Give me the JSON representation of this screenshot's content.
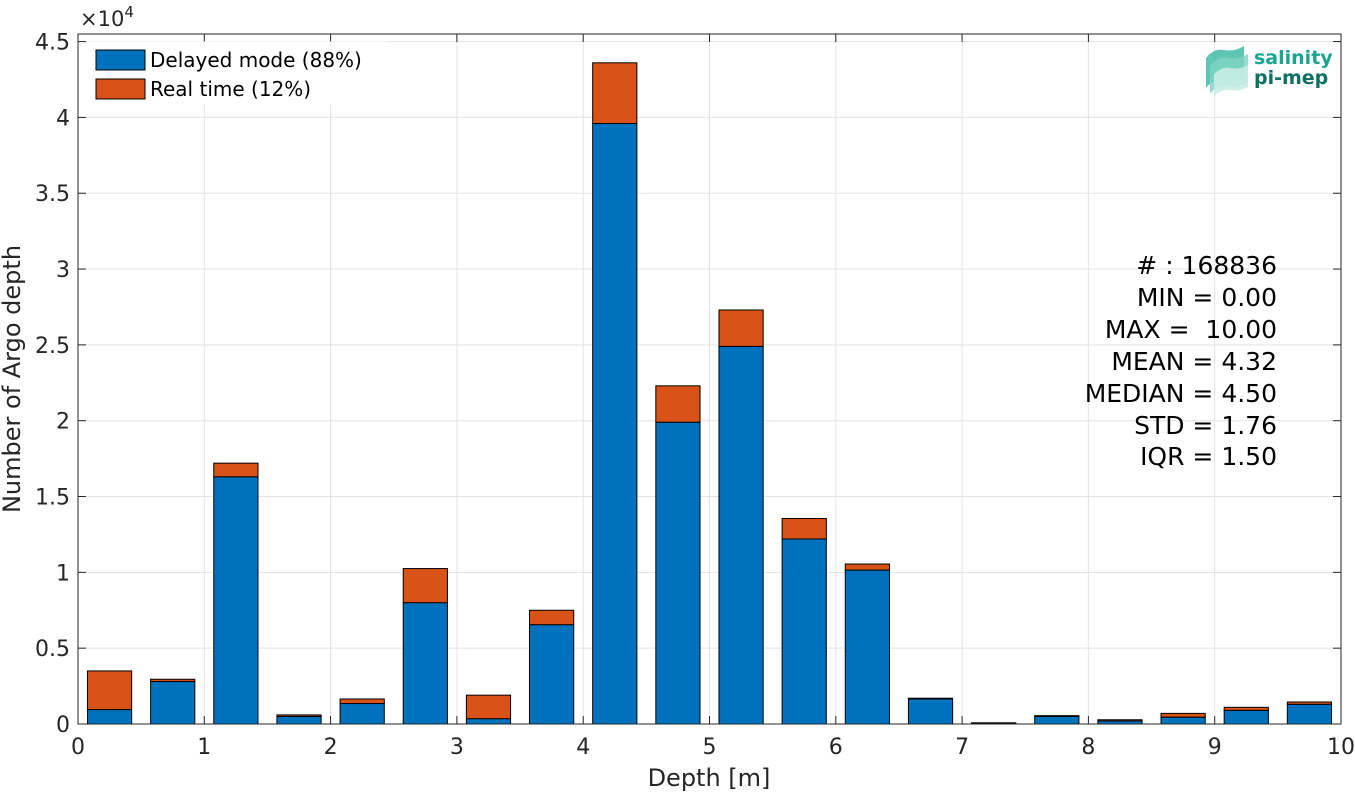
{
  "chart_data": {
    "type": "bar",
    "stacked": true,
    "xlabel": "Depth [m]",
    "ylabel": "Number of Argo depth",
    "y_exponent_label": "×10",
    "y_exponent_power": "4",
    "xlim": [
      0,
      10
    ],
    "ylim": [
      0,
      45500
    ],
    "grid": true,
    "legend_position": "top-left",
    "x_ticks": [
      "0",
      "1",
      "2",
      "3",
      "4",
      "5",
      "6",
      "7",
      "8",
      "9",
      "10"
    ],
    "y_ticks": [
      {
        "value": 0,
        "label": "0"
      },
      {
        "value": 5000,
        "label": "0.5"
      },
      {
        "value": 10000,
        "label": "1"
      },
      {
        "value": 15000,
        "label": "1.5"
      },
      {
        "value": 20000,
        "label": "2"
      },
      {
        "value": 25000,
        "label": "2.5"
      },
      {
        "value": 30000,
        "label": "3"
      },
      {
        "value": 35000,
        "label": "3.5"
      },
      {
        "value": 40000,
        "label": "4"
      },
      {
        "value": 45000,
        "label": "4.5"
      }
    ],
    "x": [
      0.25,
      0.75,
      1.25,
      1.75,
      2.25,
      2.75,
      3.25,
      3.75,
      4.25,
      4.75,
      5.25,
      5.75,
      6.25,
      6.75,
      7.25,
      7.75,
      8.25,
      8.75,
      9.25,
      9.75
    ],
    "bar_width": 0.35,
    "series": [
      {
        "name": "Delayed mode (88%)",
        "color": "#0072BD",
        "values": [
          950,
          2800,
          16300,
          500,
          1350,
          8000,
          350,
          6550,
          39600,
          19900,
          24900,
          12200,
          10150,
          1650,
          50,
          500,
          200,
          450,
          900,
          1300
        ]
      },
      {
        "name": "Real time (12%)",
        "color": "#D95319",
        "values": [
          2550,
          150,
          900,
          100,
          300,
          2250,
          1550,
          950,
          4000,
          2400,
          2400,
          1350,
          400,
          50,
          30,
          50,
          80,
          250,
          200,
          150
        ]
      }
    ]
  },
  "stats": [
    "# : 168836",
    "MIN = 0.00",
    "MAX =  10.00",
    "MEAN = 4.32",
    "MEDIAN = 4.50",
    "STD = 1.76",
    "IQR = 1.50"
  ],
  "logo": {
    "line1": "salinity",
    "line2": "pi-mep",
    "color1": "#1aa58f",
    "color2": "#0e6f63"
  }
}
